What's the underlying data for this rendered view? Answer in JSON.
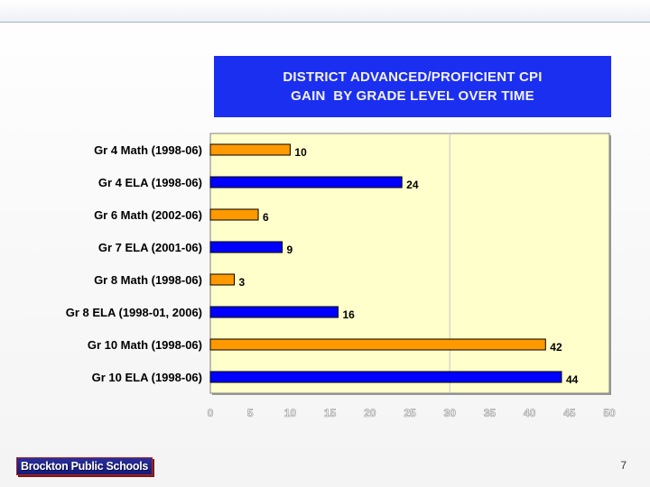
{
  "chart_data": {
    "type": "bar",
    "orientation": "horizontal",
    "title": "DISTRICT ADVANCED/PROFICIENT CPI\nGAIN  BY GRADE LEVEL OVER TIME",
    "title_lines": [
      "DISTRICT ADVANCED/PROFICIENT CPI",
      "GAIN  BY GRADE LEVEL OVER TIME"
    ],
    "categories": [
      "Gr 4 Math (1998-06)",
      "Gr 4 ELA (1998-06)",
      "Gr 6 Math (2002-06)",
      "Gr 7 ELA (2001-06)",
      "Gr 8 Math (1998-06)",
      "Gr 8 ELA (1998-01, 2006)",
      "Gr 10 Math (1998-06)",
      "Gr 10 ELA (1998-06)"
    ],
    "values": [
      10,
      24,
      6,
      9,
      3,
      16,
      42,
      44
    ],
    "data_labels": [
      "10",
      "24",
      "6",
      "9",
      "3",
      "16",
      "42",
      "44"
    ],
    "bar_colors": [
      "#ff9900",
      "#0000ff",
      "#ff9900",
      "#0000ff",
      "#ff9900",
      "#0000ff",
      "#ff9900",
      "#0000ff"
    ],
    "xlabel": "",
    "ylabel": "",
    "xlim": [
      0,
      50
    ],
    "xticks": [
      0,
      5,
      10,
      15,
      20,
      25,
      30,
      35,
      40,
      45,
      50
    ],
    "xtick_labels": [
      "0",
      "5",
      "10",
      "15",
      "20",
      "25",
      "30",
      "35",
      "40",
      "45",
      "50"
    ],
    "reference_line": 30,
    "grid": false,
    "legend": "none",
    "plot_background": "#ffffcc",
    "title_background": "#1b2ff0"
  },
  "footer": {
    "logo_text": "Brockton Public Schools",
    "page_number": "7"
  }
}
